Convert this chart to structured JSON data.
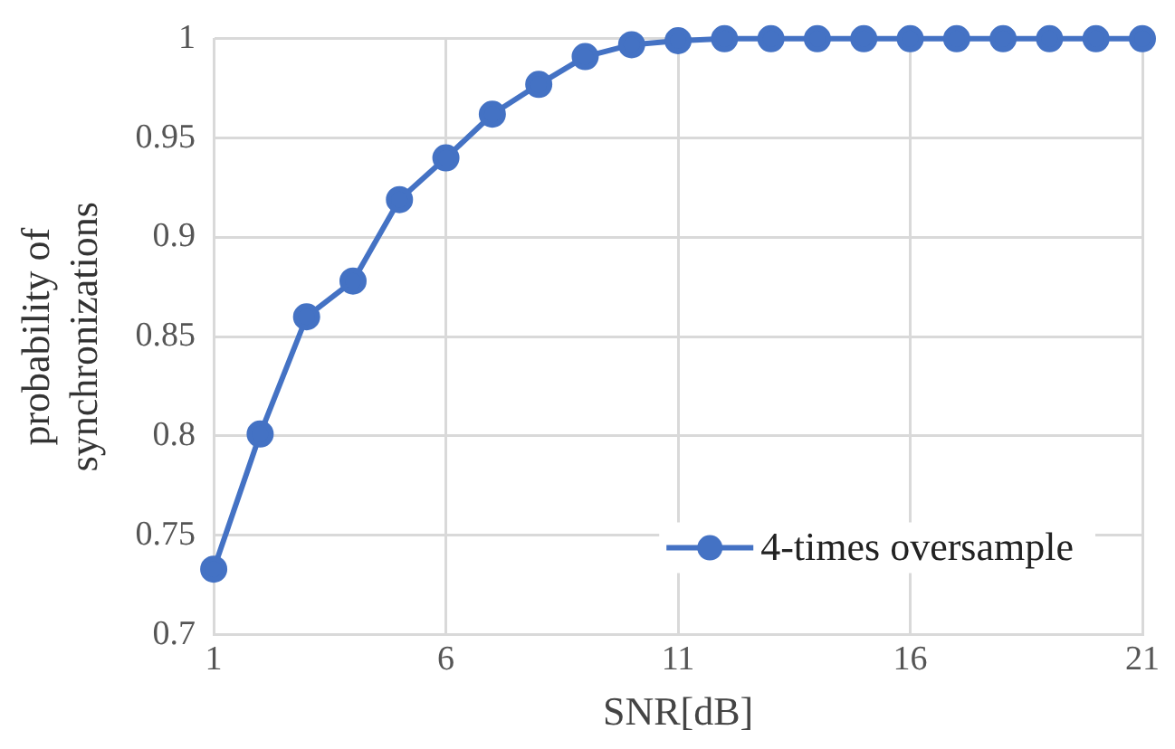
{
  "chart_data": {
    "type": "line",
    "xlabel": "SNR[dB]",
    "ylabel": "probability of synchronizations",
    "x": [
      1,
      2,
      3,
      4,
      5,
      6,
      7,
      8,
      9,
      10,
      11,
      12,
      13,
      14,
      15,
      16,
      17,
      18,
      19,
      20,
      21
    ],
    "series": [
      {
        "name": "4-times oversample",
        "color": "#4472c4",
        "values": [
          0.733,
          0.801,
          0.86,
          0.878,
          0.919,
          0.94,
          0.962,
          0.977,
          0.991,
          0.997,
          0.999,
          1,
          1,
          1,
          1,
          1,
          1,
          1,
          1,
          1,
          1
        ]
      }
    ],
    "xlim": [
      1,
      21
    ],
    "xticks": [
      1,
      6,
      11,
      16,
      21
    ],
    "ylim": [
      0.7,
      1
    ],
    "yticks": [
      0.7,
      0.75,
      0.8,
      0.85,
      0.9,
      0.95,
      1
    ],
    "grid": true,
    "legend": "bottom right",
    "marker": "circle",
    "line_style": "solid"
  }
}
